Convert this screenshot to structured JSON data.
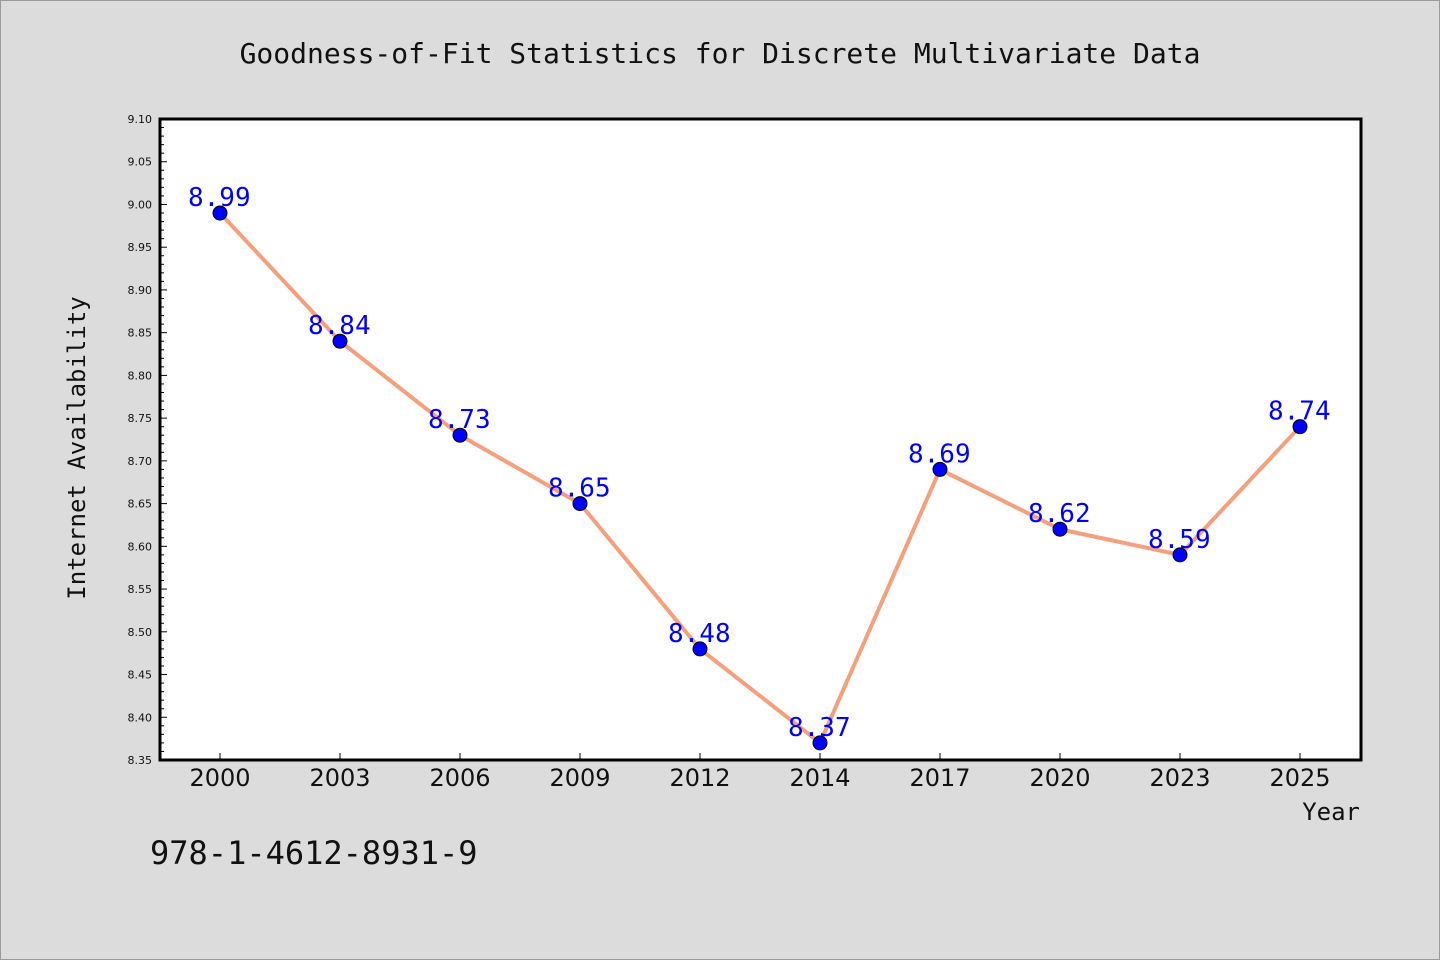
{
  "chart_data": {
    "type": "line",
    "title": "Goodness-of-Fit Statistics for Discrete Multivariate Data",
    "xlabel": "Year",
    "ylabel": "Internet Availability",
    "categories": [
      "2000",
      "2003",
      "2006",
      "2009",
      "2012",
      "2014",
      "2017",
      "2020",
      "2023",
      "2025"
    ],
    "series": [
      {
        "values": [
          8.99,
          8.84,
          8.73,
          8.65,
          8.48,
          8.37,
          8.69,
          8.62,
          8.59,
          8.74
        ],
        "line_color": "#f4a07c",
        "marker_color": "#0000ff"
      }
    ],
    "data_labels": [
      "8.99",
      "8.84",
      "8.73",
      "8.65",
      "8.48",
      "8.37",
      "8.69",
      "8.62",
      "8.59",
      "8.74"
    ],
    "ylim": [
      8.35,
      9.1
    ],
    "yticks": [
      "8.35",
      "8.40",
      "8.45",
      "8.50",
      "8.55",
      "8.60",
      "8.65",
      "8.70",
      "8.75",
      "8.80",
      "8.85",
      "8.90",
      "8.95",
      "9.00",
      "9.05",
      "9.10"
    ],
    "grid": false,
    "label_color": "#0000ff"
  },
  "annotation": {
    "isbn": "978-1-4612-8931-9"
  }
}
